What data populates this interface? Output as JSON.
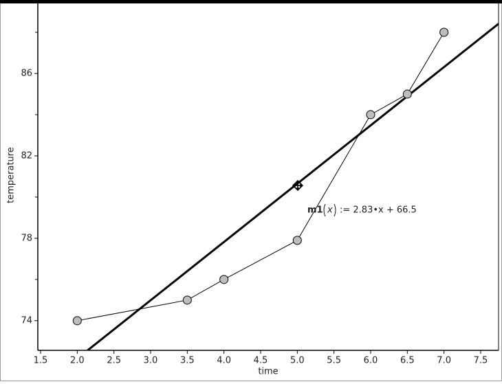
{
  "chart_data": {
    "type": "scatter-line",
    "x_label": "time",
    "y_label": "temperature",
    "x": [
      2,
      3.5,
      4,
      5,
      6,
      6.5,
      7
    ],
    "values": [
      74,
      75,
      76,
      77.9,
      84,
      85,
      88
    ],
    "color": "#bdbdbd",
    "xlim": [
      1.4625,
      7.744
    ],
    "ylim": [
      72.56,
      89.4
    ],
    "xticks": [
      1.5,
      {
        "value": 2,
        "label": "2.0"
      },
      2.5,
      {
        "value": 3,
        "label": "3.0"
      },
      3.5,
      {
        "value": 4,
        "label": "4.0"
      },
      4.5,
      {
        "value": 5,
        "label": "5.0"
      },
      5.5,
      {
        "value": 6,
        "label": "6.0"
      },
      6.5,
      {
        "value": 7,
        "label": "7.0"
      },
      7.5
    ],
    "yticks": [
      74,
      78,
      82,
      86
    ],
    "yminorticks": [
      76,
      80,
      84,
      88
    ],
    "fit": {
      "name": "m1",
      "arg": "x",
      "definition": ":= 2.83•x + 66.5",
      "slope": 2.83,
      "intercept": 66.5
    }
  }
}
